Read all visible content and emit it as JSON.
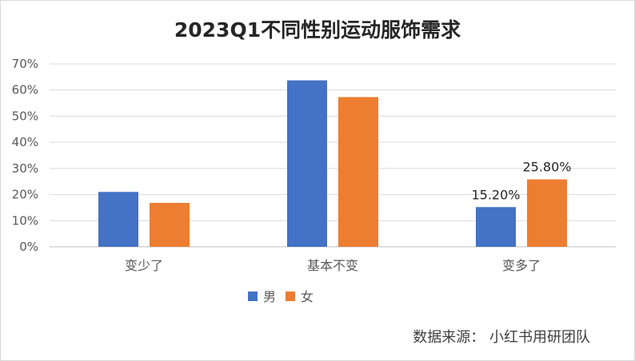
{
  "chart_data": {
    "type": "bar",
    "title": "2023Q1不同性别运动服饰需求",
    "categories": [
      "变少了",
      "基本不变",
      "变多了"
    ],
    "series": [
      {
        "name": "男",
        "color": "#4472C4",
        "values": [
          0.21,
          0.637,
          0.152
        ],
        "data_labels": [
          "",
          "",
          "15.20%"
        ]
      },
      {
        "name": "女",
        "color": "#ED7D31",
        "values": [
          0.168,
          0.573,
          0.258
        ],
        "data_labels": [
          "",
          "",
          "25.80%"
        ]
      }
    ],
    "y_ticks": [
      "0%",
      "10%",
      "20%",
      "30%",
      "40%",
      "50%",
      "60%",
      "70%"
    ],
    "ylim": [
      0,
      0.7
    ],
    "grid": true,
    "legend_position": "bottom"
  },
  "source_note": "数据来源：  小红书用研团队"
}
